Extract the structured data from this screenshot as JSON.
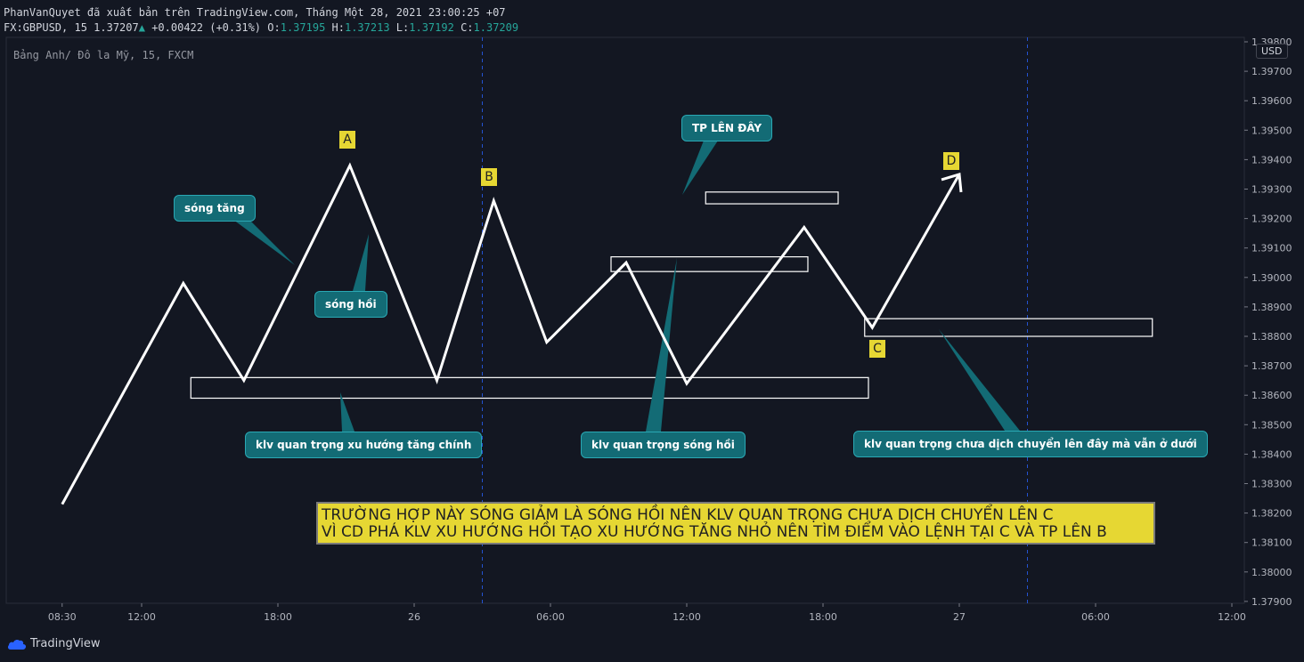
{
  "header": {
    "publish_line": "PhanVanQuyet đã xuất bản trên TradingView.com, Tháng Một 28, 2021 23:00:25 +07",
    "symbol": "FX:GBPUSD, 15",
    "last": "1.37207",
    "change": "+0.00422 (+0.31%)",
    "o_label": "O:",
    "o": "1.37195",
    "h_label": "H:",
    "h": "1.37213",
    "l_label": "L:",
    "l": "1.37192",
    "c_label": "C:",
    "c": "1.37209"
  },
  "symbol_line": "Bảng Anh/ Đô la Mỹ, 15, FXCM",
  "currency": "USD",
  "brand": "TradingView",
  "colors": {
    "background": "#131722",
    "callout": "#136b75",
    "label_yellow": "#e6d733",
    "up": "#26a69a",
    "grid_dash": "#2962ff"
  },
  "chart_data": {
    "type": "line",
    "y_axis_ticks": [
      "1.39800",
      "1.39700",
      "1.39600",
      "1.39500",
      "1.39400",
      "1.39300",
      "1.39200",
      "1.39100",
      "1.39000",
      "1.38900",
      "1.38800",
      "1.38700",
      "1.38600",
      "1.38500",
      "1.38400",
      "1.38300",
      "1.38200",
      "1.38100",
      "1.38000",
      "1.37900"
    ],
    "ylim": [
      1.379,
      1.398
    ],
    "x_axis_ticks": [
      "08:30",
      "12:00",
      "18:00",
      "26",
      "06:00",
      "12:00",
      "18:00",
      "27",
      "06:00",
      "12:00"
    ],
    "session_breaks": [
      "03:00 Jan 26",
      "03:00 Jan 27"
    ],
    "wave_path": [
      {
        "x": "08:30 Jan 25",
        "y": 1.3823
      },
      {
        "x": "13:50 Jan 25",
        "y": 1.3898
      },
      {
        "x": "16:30 Jan 25",
        "y": 1.3865
      },
      {
        "x": "21:10 Jan 25",
        "y": 1.3938
      },
      {
        "x": "01:00 Jan 26",
        "y": 1.3865
      },
      {
        "x": "03:30 Jan 26",
        "y": 1.3926
      },
      {
        "x": "05:50 Jan 26",
        "y": 1.3878
      },
      {
        "x": "09:20 Jan 26",
        "y": 1.3905
      },
      {
        "x": "12:00 Jan 26",
        "y": 1.3864
      },
      {
        "x": "17:10 Jan 26",
        "y": 1.3917
      },
      {
        "x": "20:10 Jan 26",
        "y": 1.3883
      },
      {
        "x": "00:00 Jan 27",
        "y": 1.3935
      }
    ],
    "wave_labels": [
      "A",
      "B",
      "C",
      "D"
    ],
    "zones": [
      {
        "x1": "12:50 Jan 26",
        "x2": "18:40 Jan 26",
        "y_top": 1.3925,
        "y_bottom": 1.3929
      },
      {
        "x1": "08:40 Jan 26",
        "x2": "17:20 Jan 26",
        "y_top": 1.3902,
        "y_bottom": 1.3907
      },
      {
        "x1": "19:50 Jan 26",
        "x2": "08:30 Jan 27",
        "y_top": 1.388,
        "y_bottom": 1.3886
      },
      {
        "x1": "14:10 Jan 25",
        "x2": "20:00 Jan 26",
        "y_top": 1.3859,
        "y_bottom": 1.3866
      }
    ]
  },
  "callouts": {
    "song_tang": "sóng tăng",
    "song_hoi": "sóng hồi",
    "tp": "TP LÊN ĐÂY",
    "klv_main": "klv quan trọng xu hướng tăng chính",
    "klv_hoi": "klv quan trọng sóng hồi",
    "klv_below": "klv quan trọng chưa dịch chuyển lên đây mà vẫn ở dưới"
  },
  "note": {
    "line1": "TRƯỜNG HỢP NÀY SÓNG GIẢM LÀ SÓNG HỒI NÊN KLV QUAN TRỌNG CHƯA DỊCH CHUYỂN LÊN C",
    "line2": "VÌ CD PHÁ KLV XU HƯỚNG HỒI TẠO XU HƯỚNG TĂNG NHỎ NÊN TÌM ĐIỂM VÀO LỆNH TẠI C VÀ TP LÊN B"
  }
}
